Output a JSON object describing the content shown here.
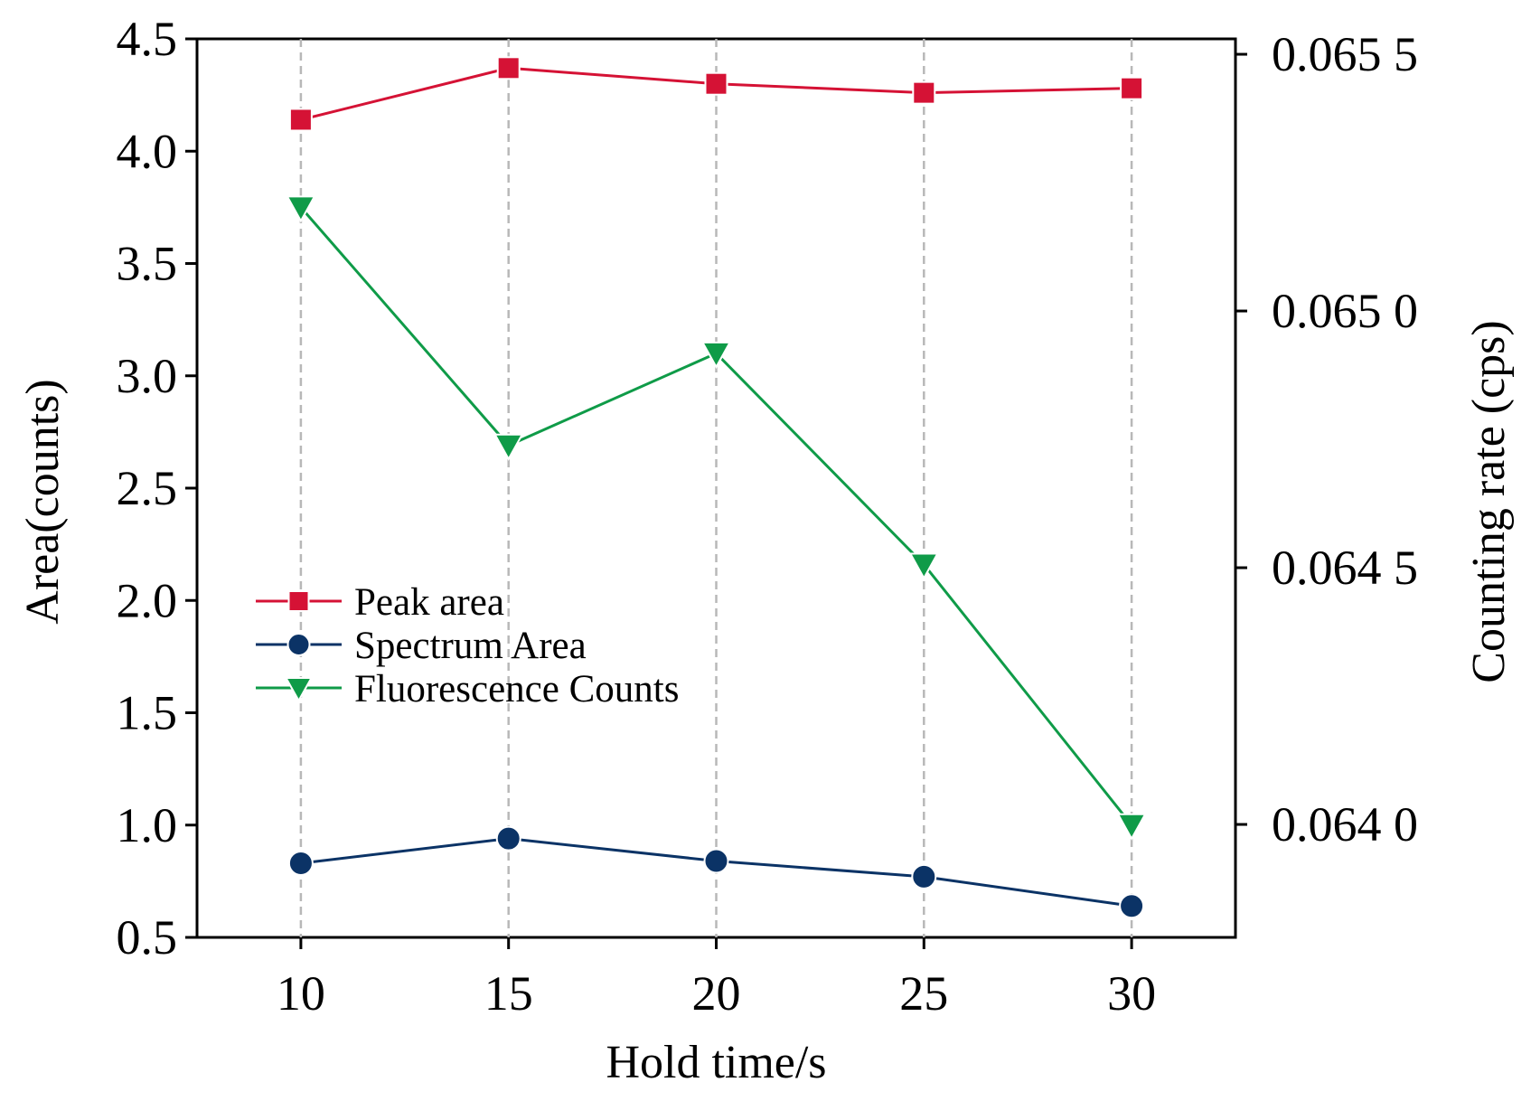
{
  "chart_data": {
    "type": "line",
    "xlabel": "Hold time/s",
    "ylabel": "Area(counts)",
    "y2label": "Counting rate (cps)",
    "x": [
      10,
      15,
      20,
      25,
      30
    ],
    "xlim": [
      7.5,
      32.5
    ],
    "xticks": [
      "10",
      "15",
      "20",
      "25",
      "30"
    ],
    "ylim": [
      0.5,
      4.5
    ],
    "yticks": [
      "0.5",
      "1.0",
      "1.5",
      "2.0",
      "2.5",
      "3.0",
      "3.5",
      "4.0",
      "4.5"
    ],
    "y2lim": [
      0.06378,
      0.06553
    ],
    "y2ticks": [
      {
        "value": 0.064,
        "label": "0.064 0"
      },
      {
        "value": 0.0645,
        "label": "0.064 5"
      },
      {
        "value": 0.065,
        "label": "0.065 0"
      },
      {
        "value": 0.0655,
        "label": "0.065 5"
      }
    ],
    "grid": "vertical dashed at x ticks",
    "legend_position": "center-left",
    "series": [
      {
        "name": "Peak area",
        "axis": "left",
        "marker": "square",
        "color": "#d51235",
        "values": [
          4.14,
          4.37,
          4.3,
          4.26,
          4.28
        ]
      },
      {
        "name": "Spectrum Area",
        "axis": "left",
        "marker": "circle",
        "color": "#0b3366",
        "values": [
          0.83,
          0.94,
          0.84,
          0.77,
          0.64
        ]
      },
      {
        "name": "Fluorescence Counts",
        "axis": "left",
        "marker": "triangle-down",
        "color": "#0f9b48",
        "values": [
          3.75,
          2.69,
          3.1,
          2.16,
          1.0
        ]
      }
    ]
  }
}
